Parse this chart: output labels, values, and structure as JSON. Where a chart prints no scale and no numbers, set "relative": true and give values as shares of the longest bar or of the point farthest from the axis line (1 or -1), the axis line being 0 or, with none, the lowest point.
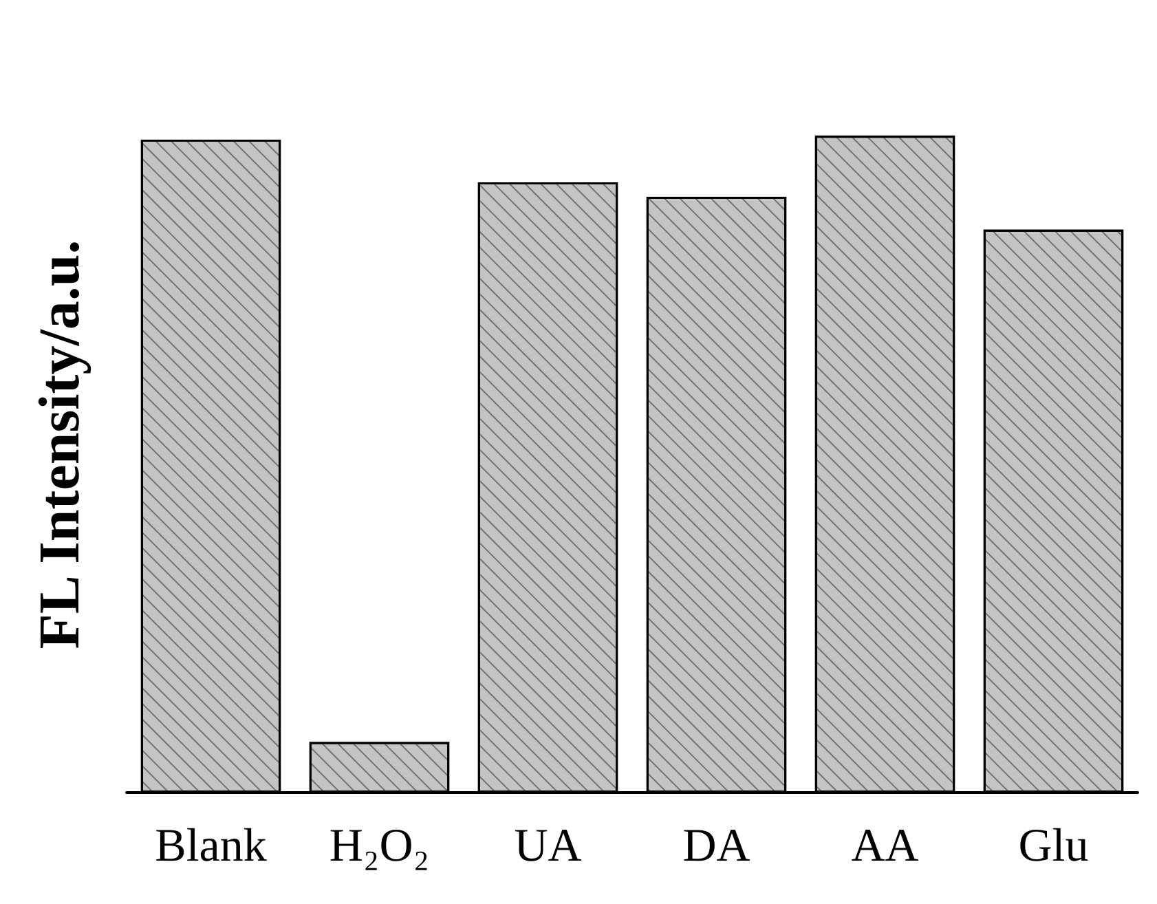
{
  "chart_data": {
    "type": "bar",
    "ylabel": "FL Intensity/a.u.",
    "relative": true,
    "categories": [
      "Blank",
      "H₂O₂",
      "UA",
      "DA",
      "AA",
      "Glu"
    ],
    "values": [
      0.994,
      0.077,
      0.929,
      0.907,
      1,
      0.857
    ],
    "color": "#c4c4c4"
  }
}
